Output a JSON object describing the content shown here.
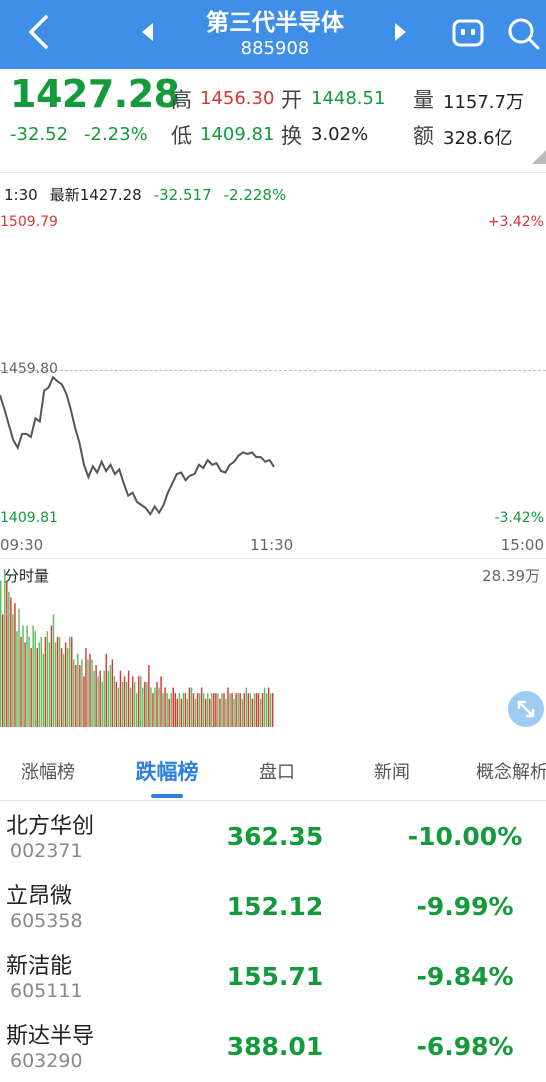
{
  "header": {
    "title": "第三代半导体",
    "code": "885908"
  },
  "quote": {
    "price": "1427.28",
    "change": "-32.52",
    "change_pct": "-2.23%",
    "high_label": "高",
    "high": "1456.30",
    "open_label": "开",
    "open": "1448.51",
    "volume_label": "量",
    "volume": "1157.7万",
    "low_label": "低",
    "low": "1409.81",
    "turnover_label": "换",
    "turnover": "3.02%",
    "amount_label": "额",
    "amount": "328.6亿"
  },
  "intraday": {
    "time": "1:30",
    "latest_label": "最新1427.28",
    "change": "-32.517",
    "change_pct": "-2.228%",
    "y_top": "1509.79",
    "y_mid": "1459.80",
    "y_bottom": "1409.81",
    "pct_top": "+3.42%",
    "pct_bottom": "-3.42%",
    "x_start": "09:30",
    "x_mid": "11:30",
    "x_end": "15:00",
    "volume_title": "分时量",
    "volume_max": "28.39万"
  },
  "chart_data": {
    "type": "line",
    "ylim": [
      1409.81,
      1509.79
    ],
    "reference": 1459.8,
    "x_range": [
      "09:30",
      "15:00"
    ],
    "series": [
      {
        "values": [
          1450.5,
          1446,
          1441,
          1436,
          1433.5,
          1438,
          1438,
          1437,
          1443,
          1442,
          1452,
          1453,
          1456.3,
          1455,
          1454,
          1451,
          1446,
          1440,
          1435,
          1428,
          1424,
          1427.5,
          1425.5,
          1429,
          1426,
          1428,
          1425,
          1426.5,
          1422,
          1418,
          1419,
          1416,
          1415,
          1414,
          1412,
          1414.5,
          1412.5,
          1415,
          1419,
          1422,
          1425,
          1425.5,
          1423,
          1424.5,
          1425,
          1428,
          1427,
          1429.5,
          1428,
          1428.5,
          1426,
          1425.5,
          1428,
          1429,
          1431,
          1432,
          1431.5,
          1432,
          1430.5,
          1430.5,
          1429,
          1429.5,
          1427.3
        ]
      }
    ],
    "volume_ylim": [
      0,
      28.39
    ],
    "volume_unit": "万",
    "volume": [
      26,
      20,
      28,
      26,
      24,
      23,
      20,
      22,
      17,
      21,
      16,
      18,
      15,
      18,
      16,
      14,
      18,
      17,
      14,
      15,
      16,
      13,
      16,
      17,
      15,
      18,
      20,
      15,
      16,
      16,
      14,
      13,
      15,
      14,
      16,
      16,
      12,
      11,
      13,
      11,
      12,
      9,
      14,
      12,
      13,
      12,
      10,
      11,
      9,
      10,
      8,
      10,
      13,
      10,
      11,
      12,
      9,
      8,
      7,
      10,
      8,
      9,
      8,
      10,
      7,
      9,
      8,
      6,
      9,
      9,
      7,
      8,
      8,
      11,
      7,
      6,
      7,
      8,
      7,
      9,
      6,
      7,
      6,
      5,
      6,
      7,
      6,
      5,
      6,
      5,
      6,
      6,
      5,
      7,
      7,
      6,
      5,
      6,
      6,
      7,
      6,
      5,
      6,
      5,
      6,
      6,
      6,
      6,
      5,
      6,
      6,
      5,
      7,
      6,
      6,
      5,
      6,
      6,
      6,
      5,
      6,
      7,
      6,
      6,
      5,
      6,
      6,
      6,
      5,
      6,
      7,
      6,
      7,
      6,
      6
    ],
    "volume_colors": [
      "g",
      "r",
      "g",
      "r",
      "g",
      "r",
      "g",
      "r",
      "g",
      "g",
      "r",
      "g",
      "r",
      "g",
      "g",
      "r",
      "g",
      "g",
      "r",
      "g",
      "g",
      "g",
      "r",
      "g",
      "g",
      "r",
      "g",
      "g",
      "r",
      "g",
      "r",
      "g",
      "r",
      "g",
      "g",
      "r",
      "g",
      "r",
      "g",
      "r",
      "g",
      "r",
      "r",
      "g",
      "r",
      "g",
      "g",
      "r",
      "g",
      "r",
      "g",
      "g",
      "r",
      "g",
      "g",
      "r",
      "g",
      "r",
      "g",
      "r",
      "g",
      "r",
      "g",
      "r",
      "g",
      "r",
      "g",
      "g",
      "r",
      "g",
      "g",
      "r",
      "g",
      "r",
      "g",
      "r",
      "g",
      "r",
      "g",
      "r",
      "g",
      "r",
      "g",
      "r",
      "g",
      "r",
      "r",
      "r",
      "g",
      "r",
      "g",
      "r",
      "g",
      "r",
      "g",
      "r",
      "g",
      "r",
      "g",
      "r",
      "g",
      "r",
      "g",
      "r",
      "g",
      "r",
      "r",
      "g",
      "r",
      "g",
      "r",
      "g",
      "r",
      "g",
      "r",
      "g",
      "r",
      "g",
      "r",
      "g",
      "r",
      "g",
      "r",
      "g",
      "r",
      "g",
      "r",
      "r",
      "g",
      "r",
      "g",
      "g",
      "r",
      "g",
      "r"
    ]
  },
  "tabs": [
    "涨幅榜",
    "跌幅榜",
    "盘口",
    "新闻",
    "概念解析"
  ],
  "active_tab": "跌幅榜",
  "stocks": [
    {
      "name": "北方华创",
      "code": "002371",
      "price": "362.35",
      "pct": "-10.00%"
    },
    {
      "name": "立昂微",
      "code": "605358",
      "price": "152.12",
      "pct": "-9.99%"
    },
    {
      "name": "新洁能",
      "code": "605111",
      "price": "155.71",
      "pct": "-9.84%"
    },
    {
      "name": "斯达半导",
      "code": "603290",
      "price": "388.01",
      "pct": "-6.98%"
    }
  ],
  "colors": {
    "header_bg": "#3f8ee8",
    "down": "#139a3a",
    "up": "#d93636",
    "accent": "#2e7fde"
  },
  "icons": {
    "back": "chevron-left-icon",
    "prev": "triangle-left-icon",
    "next": "triangle-right-icon",
    "message": "chat-bubble-icon",
    "search": "search-icon",
    "expand": "expand-icon"
  }
}
